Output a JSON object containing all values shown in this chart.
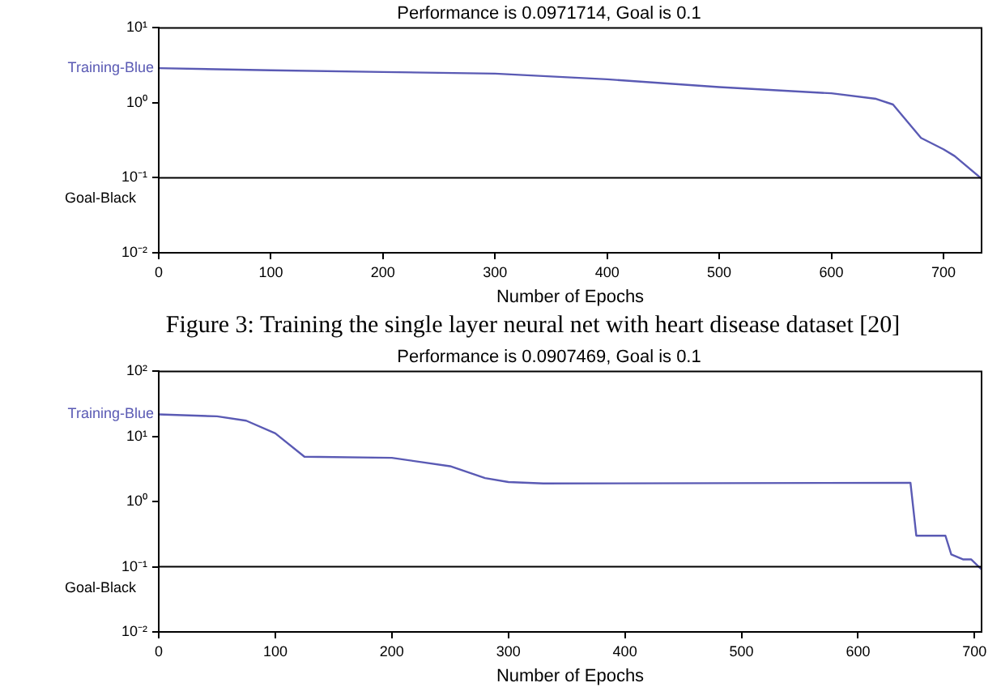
{
  "chart_data": [
    {
      "type": "line",
      "title": "Performance is 0.0971714, Goal is 0.1",
      "xlabel": "Number of Epochs",
      "annotations": [
        "Figure 3: Training the single layer neural net with heart disease dataset [20]"
      ],
      "series": [
        {
          "name": "Training-Blue",
          "color": "#5a5ab4",
          "x": [
            0,
            100,
            200,
            300,
            400,
            500,
            600,
            640,
            655,
            680,
            700,
            710,
            734
          ],
          "values": [
            2.9,
            2.72,
            2.58,
            2.45,
            2.06,
            1.62,
            1.34,
            1.13,
            0.95,
            0.34,
            0.24,
            0.195,
            0.0972
          ]
        }
      ],
      "ref_lines": [
        {
          "axis": "y",
          "value": 0.1,
          "label": "Goal-Black",
          "color": "#000000"
        }
      ],
      "log": "y",
      "xlim": [
        0,
        734
      ],
      "xticks": [
        0,
        100,
        200,
        300,
        400,
        500,
        600,
        700
      ],
      "ylim": [
        0.01,
        10
      ],
      "yticks": [
        {
          "value": 0.01,
          "label": "10⁻²"
        },
        {
          "value": 0.1,
          "label": "10⁻¹"
        },
        {
          "value": 1,
          "label": "10⁰"
        },
        {
          "value": 10,
          "label": "10¹"
        }
      ],
      "grid": false,
      "legend": false,
      "marker": "none",
      "line_style": "solid"
    },
    {
      "type": "line",
      "title": "Performance is 0.0907469, Goal is 0.1",
      "xlabel": "Number of Epochs",
      "series": [
        {
          "name": "Training-Blue",
          "color": "#5a5ab4",
          "x": [
            0,
            50,
            75,
            100,
            125,
            200,
            250,
            280,
            300,
            330,
            645,
            650,
            675,
            680,
            690,
            697,
            706
          ],
          "values": [
            21.9,
            20.4,
            17.5,
            11.2,
            4.9,
            4.7,
            3.5,
            2.3,
            2.0,
            1.9,
            1.95,
            0.3,
            0.3,
            0.155,
            0.13,
            0.13,
            0.0907
          ]
        }
      ],
      "ref_lines": [
        {
          "axis": "y",
          "value": 0.1,
          "label": "Goal-Black",
          "color": "#000000"
        }
      ],
      "log": "y",
      "xlim": [
        0,
        706
      ],
      "xticks": [
        0,
        100,
        200,
        300,
        400,
        500,
        600,
        700
      ],
      "ylim": [
        0.01,
        100
      ],
      "yticks": [
        {
          "value": 0.01,
          "label": "10⁻²"
        },
        {
          "value": 0.1,
          "label": "10⁻¹"
        },
        {
          "value": 1,
          "label": "10⁰"
        },
        {
          "value": 10,
          "label": "10¹"
        },
        {
          "value": 100,
          "label": "10²"
        }
      ],
      "grid": false,
      "legend": false,
      "marker": "none",
      "line_style": "solid"
    }
  ]
}
